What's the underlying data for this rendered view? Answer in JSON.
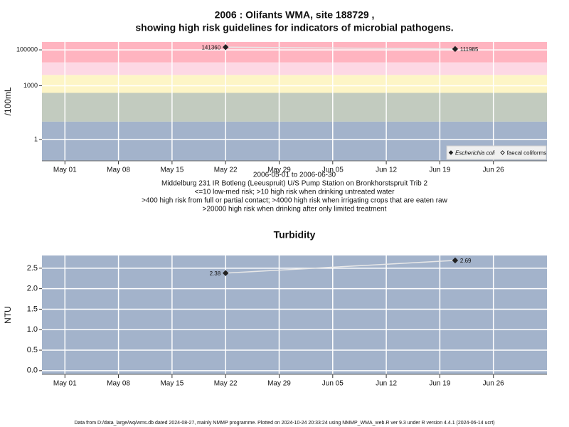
{
  "chart_data": [
    {
      "type": "line",
      "title": [
        "2006 : Olifants WMA, site 188729 ,",
        "showing high risk guidelines for indicators of microbial pathogens."
      ],
      "ylabel": "/100mL",
      "notes": [
        "2006-05-01 to 2006-06-30",
        "Middelburg 231 IR Botleng (Leeuspruit) U/S Pump Station on Bronkhorstspruit Trib 2",
        "<=10 low-med risk; >10 high risk when drinking untreated water",
        ">400 high risk from full or partial contact; >4000 high risk when irrigating crops that are eaten raw",
        ">20000 high risk when drinking after only limited treatment"
      ],
      "log_y": true,
      "thresholds": [
        10,
        400,
        4000,
        20000
      ],
      "band_colors": [
        "#a3b3cb",
        "#c2cbbf",
        "#fdf5c6",
        "#fdd8e4",
        "#ffb4c0"
      ],
      "x": [
        "2006-05-22",
        "2006-06-21"
      ],
      "series": [
        {
          "name": "Escherichia coli",
          "color": "#222222",
          "marker": "filled",
          "values": [
            141360,
            111985
          ]
        },
        {
          "name": "faecal coliforms",
          "color": "#222222",
          "marker": "hollow",
          "values": [
            null,
            null
          ]
        }
      ],
      "line_color": "#e8e8e8",
      "xlim": [
        "2006-04-28",
        "2006-07-03"
      ],
      "xticks": [
        {
          "value": "2006-05-01",
          "label": "May 01"
        },
        {
          "value": "2006-05-08",
          "label": "May 08"
        },
        {
          "value": "2006-05-15",
          "label": "May 15"
        },
        {
          "value": "2006-05-22",
          "label": "May 22"
        },
        {
          "value": "2006-05-29",
          "label": "May 29"
        },
        {
          "value": "2006-06-05",
          "label": "Jun 05"
        },
        {
          "value": "2006-06-12",
          "label": "Jun 12"
        },
        {
          "value": "2006-06-19",
          "label": "Jun 19"
        },
        {
          "value": "2006-06-26",
          "label": "Jun 26"
        }
      ],
      "ylim": [
        0.065,
        275000
      ],
      "yticks": [
        1,
        1000,
        100000
      ],
      "grid": true,
      "legend": "bottom-right"
    },
    {
      "type": "line",
      "title": [
        "Turbidity"
      ],
      "ylabel": "NTU",
      "background": "#a3b3cb",
      "x": [
        "2006-05-22",
        "2006-06-21"
      ],
      "series": [
        {
          "name": "Turbidity",
          "color": "#222222",
          "marker": "filled",
          "values": [
            2.38,
            2.69
          ]
        }
      ],
      "line_color": "#e8e8e8",
      "xlim": [
        "2006-04-28",
        "2006-07-03"
      ],
      "xticks": [
        {
          "value": "2006-05-01",
          "label": "May 01"
        },
        {
          "value": "2006-05-08",
          "label": "May 08"
        },
        {
          "value": "2006-05-15",
          "label": "May 15"
        },
        {
          "value": "2006-05-22",
          "label": "May 22"
        },
        {
          "value": "2006-05-29",
          "label": "May 29"
        },
        {
          "value": "2006-06-05",
          "label": "Jun 05"
        },
        {
          "value": "2006-06-12",
          "label": "Jun 12"
        },
        {
          "value": "2006-06-19",
          "label": "Jun 19"
        },
        {
          "value": "2006-06-26",
          "label": "Jun 26"
        }
      ],
      "ylim": [
        -0.09,
        2.81
      ],
      "yticks": [
        {
          "value": 0,
          "label": "0.0"
        },
        {
          "value": 0.5,
          "label": "0.5"
        },
        {
          "value": 1,
          "label": "1.0"
        },
        {
          "value": 1.5,
          "label": "1.5"
        },
        {
          "value": 2,
          "label": "2.0"
        },
        {
          "value": 2.5,
          "label": "2.5"
        }
      ],
      "grid": true
    }
  ],
  "footer": "Data from D:/data_large/wq/wms.db dated 2024-08-27, mainly NMMP programme. Plotted on 2024-10-24 20:33:24 using NMMP_WMA_web.R ver 9.3 under R version 4.4.1 (2024-06-14 ucrt)"
}
